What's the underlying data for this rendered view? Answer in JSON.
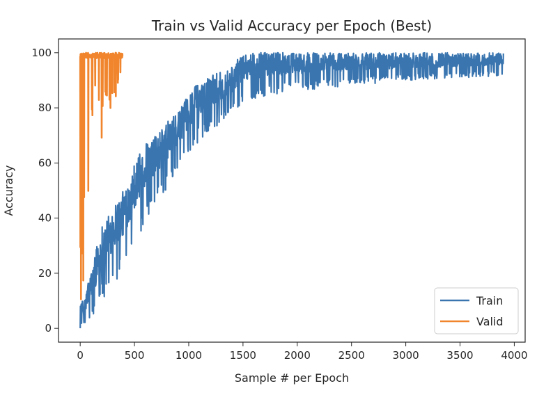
{
  "chart_data": {
    "type": "line",
    "title": "Train vs Valid Accuracy per Epoch (Best)",
    "xlabel": "Sample # per Epoch",
    "ylabel": "Accuracy",
    "xlim": [
      -200,
      4100
    ],
    "ylim": [
      -5,
      105
    ],
    "xticks": [
      0,
      500,
      1000,
      1500,
      2000,
      2500,
      3000,
      3500,
      4000
    ],
    "yticks": [
      0,
      20,
      40,
      60,
      80,
      100
    ],
    "grid": false,
    "legend_position": "lower-right",
    "series": [
      {
        "name": "Train",
        "color": "#3a75b0",
        "x": [
          0,
          20,
          40,
          60,
          80,
          100,
          150,
          200,
          250,
          300,
          400,
          500,
          600,
          700,
          800,
          900,
          1000,
          1100,
          1200,
          1300,
          1400,
          1500,
          1600,
          1800,
          2000,
          2200,
          2500,
          2800,
          3000,
          3200,
          3500,
          3700,
          3900
        ],
        "upper": [
          10,
          10,
          10,
          15,
          18,
          20,
          30,
          38,
          40,
          45,
          50,
          60,
          67,
          70,
          75,
          78,
          85,
          90,
          92,
          93,
          95,
          100,
          100,
          100,
          100,
          100,
          100,
          100,
          100,
          100,
          100,
          100,
          100
        ],
        "lower": [
          0,
          0,
          0,
          0,
          2,
          3,
          5,
          10,
          12,
          15,
          20,
          30,
          38,
          45,
          50,
          57,
          63,
          68,
          72,
          74,
          78,
          82,
          83,
          85,
          86,
          87,
          88,
          89,
          90,
          90,
          91,
          91,
          92
        ]
      },
      {
        "name": "Valid",
        "color": "#f0852d",
        "x": [
          0,
          20,
          40,
          60,
          80,
          100,
          130,
          160,
          200,
          250,
          300,
          350,
          390
        ],
        "upper": [
          100,
          100,
          100,
          100,
          100,
          100,
          100,
          100,
          100,
          100,
          100,
          100,
          100
        ],
        "lower": [
          0,
          0,
          0,
          0,
          45,
          60,
          75,
          80,
          66,
          85,
          75,
          90,
          92
        ]
      }
    ]
  }
}
